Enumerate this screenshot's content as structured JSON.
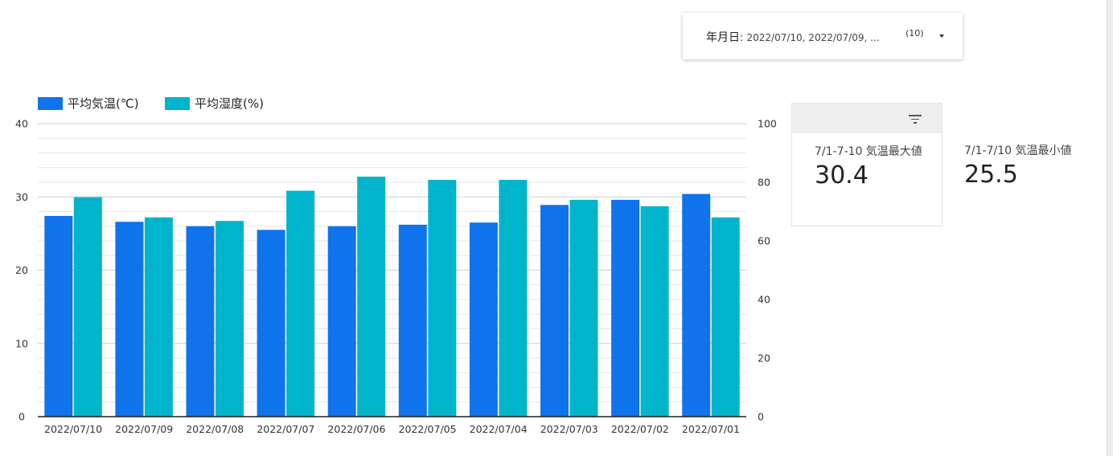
{
  "filter": {
    "label": "年月日",
    "value": "2022/07/10, 2022/07/09, ...",
    "count": "(10)"
  },
  "scorecards": [
    {
      "label": "7/1-7-10 気温最大値",
      "value": "30.4"
    },
    {
      "label": "7/1-7/10 気温最小値",
      "value": "25.5"
    }
  ],
  "chart_data": {
    "type": "bar",
    "categories": [
      "2022/07/10",
      "2022/07/09",
      "2022/07/08",
      "2022/07/07",
      "2022/07/06",
      "2022/07/05",
      "2022/07/04",
      "2022/07/03",
      "2022/07/02",
      "2022/07/01"
    ],
    "series": [
      {
        "name": "平均気温(℃)",
        "axis": "left",
        "color": "#0f73ec",
        "values": [
          27.4,
          26.6,
          26.0,
          25.5,
          26.0,
          26.2,
          26.5,
          28.9,
          29.6,
          30.4
        ]
      },
      {
        "name": "平均湿度(%)",
        "axis": "right",
        "color": "#00b5cb",
        "values": [
          74.9,
          68.0,
          66.8,
          77.1,
          81.9,
          80.8,
          80.8,
          74.0,
          71.8,
          68.0
        ]
      }
    ],
    "ylim_left": [
      0,
      40
    ],
    "yticks_left": [
      "0",
      "10",
      "20",
      "30",
      "40"
    ],
    "ylim_right": [
      0,
      100
    ],
    "yticks_right": [
      "0",
      "20",
      "40",
      "60",
      "80",
      "100"
    ],
    "grid": true,
    "legend_position": "top-left"
  }
}
